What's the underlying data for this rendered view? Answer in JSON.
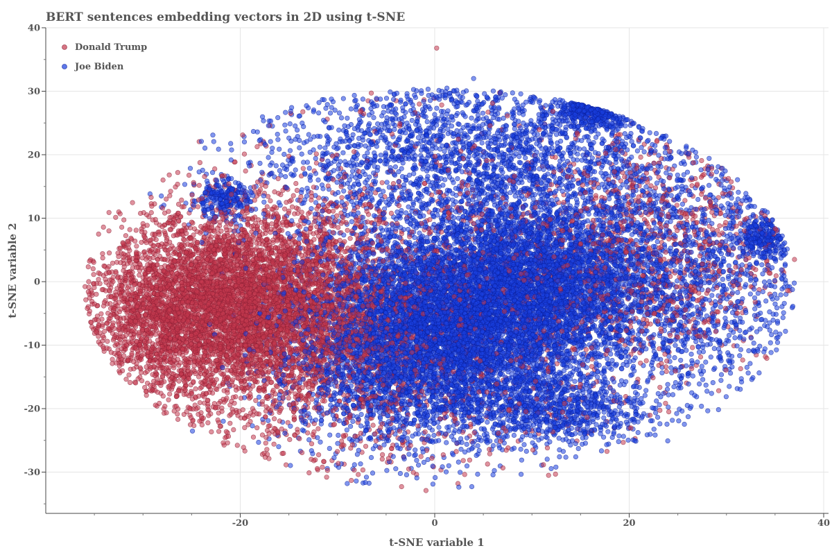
{
  "chart_data": {
    "type": "scatter",
    "title": "BERT sentences embedding vectors in 2D using t-SNE",
    "xlabel": "t-SNE variable 1",
    "ylabel": "t-SNE variable 2",
    "xlim": [
      -40,
      40.5
    ],
    "ylim": [
      -36.5,
      40
    ],
    "xticks": [
      -20,
      0,
      20,
      40
    ],
    "yticks": [
      -30,
      -20,
      -10,
      0,
      10,
      20,
      30,
      40
    ],
    "grid": true,
    "legend": {
      "placement": "top-left"
    },
    "series": [
      {
        "name": "Donald Trump",
        "color": "#c4394f",
        "edge_color": "#8a2035",
        "approx_point_count": 9000,
        "clusters": [
          {
            "cx": -20,
            "cy": -3,
            "sx": 6.5,
            "sy": 7,
            "weight": 0.45
          },
          {
            "cx": -15,
            "cy": -8,
            "sx": 7,
            "sy": 9,
            "weight": 0.15
          },
          {
            "cx": -28,
            "cy": -6,
            "sx": 4,
            "sy": 6,
            "weight": 0.12
          },
          {
            "cx": -5,
            "cy": -5,
            "sx": 13,
            "sy": 14,
            "weight": 0.18
          },
          {
            "cx": 22,
            "cy": 5,
            "sx": 7,
            "sy": 10,
            "weight": 0.1
          }
        ],
        "notable_points": [
          {
            "x": 0.2,
            "y": 36.8
          },
          {
            "x": -0.9,
            "y": -32.9
          },
          {
            "x": -33.5,
            "y": 10.9
          },
          {
            "x": 37,
            "y": 3.5
          }
        ]
      },
      {
        "name": "Joe Biden",
        "color": "#1a3fe0",
        "edge_color": "#0a1e9a",
        "approx_point_count": 16000,
        "clusters": [
          {
            "cx": 2,
            "cy": -7,
            "sx": 6.5,
            "sy": 7.5,
            "weight": 0.3
          },
          {
            "cx": 11,
            "cy": 0,
            "sx": 6,
            "sy": 6.5,
            "weight": 0.22
          },
          {
            "cx": -5,
            "cy": -10,
            "sx": 6,
            "sy": 9,
            "weight": 0.13
          },
          {
            "cx": 5,
            "cy": 20,
            "sx": 12,
            "sy": 7,
            "weight": 0.15
          },
          {
            "cx": 25,
            "cy": 0,
            "sx": 8,
            "sy": 10,
            "weight": 0.1
          },
          {
            "cx": 12,
            "cy": -20,
            "sx": 5,
            "sy": 3,
            "weight": 0.05
          },
          {
            "cx": 17,
            "cy": 28,
            "sx": 2,
            "sy": 1.5,
            "weight": 0.02
          },
          {
            "cx": 34,
            "cy": 7,
            "sx": 1.5,
            "sy": 1.5,
            "weight": 0.015
          },
          {
            "cx": -22,
            "cy": 13,
            "sx": 1.5,
            "sy": 1.5,
            "weight": 0.015
          }
        ],
        "notable_points": [
          {
            "x": -9,
            "y": -31.8
          },
          {
            "x": 36.5,
            "y": -0.8
          },
          {
            "x": 4,
            "y": 32
          }
        ]
      }
    ]
  }
}
